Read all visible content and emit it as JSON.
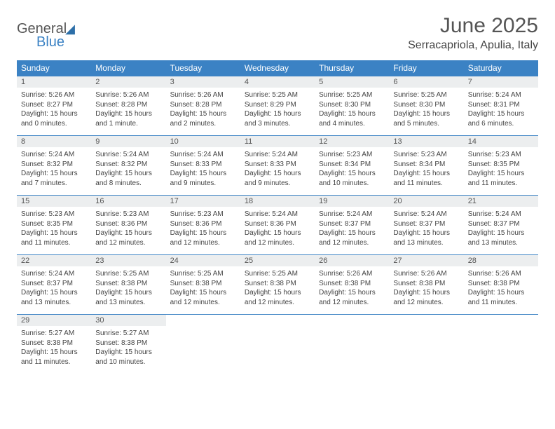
{
  "logo": {
    "general": "General",
    "blue": "Blue"
  },
  "title": "June 2025",
  "location": "Serracapriola, Apulia, Italy",
  "colors": {
    "header_bg": "#3b82c4",
    "header_text": "#ffffff",
    "daynum_bg": "#eceeef",
    "border": "#3b82c4",
    "body_text": "#444444",
    "title_text": "#555555"
  },
  "dayHeaders": [
    "Sunday",
    "Monday",
    "Tuesday",
    "Wednesday",
    "Thursday",
    "Friday",
    "Saturday"
  ],
  "weeks": [
    [
      {
        "n": "1",
        "sr": "5:26 AM",
        "ss": "8:27 PM",
        "dl": "15 hours and 0 minutes."
      },
      {
        "n": "2",
        "sr": "5:26 AM",
        "ss": "8:28 PM",
        "dl": "15 hours and 1 minute."
      },
      {
        "n": "3",
        "sr": "5:26 AM",
        "ss": "8:28 PM",
        "dl": "15 hours and 2 minutes."
      },
      {
        "n": "4",
        "sr": "5:25 AM",
        "ss": "8:29 PM",
        "dl": "15 hours and 3 minutes."
      },
      {
        "n": "5",
        "sr": "5:25 AM",
        "ss": "8:30 PM",
        "dl": "15 hours and 4 minutes."
      },
      {
        "n": "6",
        "sr": "5:25 AM",
        "ss": "8:30 PM",
        "dl": "15 hours and 5 minutes."
      },
      {
        "n": "7",
        "sr": "5:24 AM",
        "ss": "8:31 PM",
        "dl": "15 hours and 6 minutes."
      }
    ],
    [
      {
        "n": "8",
        "sr": "5:24 AM",
        "ss": "8:32 PM",
        "dl": "15 hours and 7 minutes."
      },
      {
        "n": "9",
        "sr": "5:24 AM",
        "ss": "8:32 PM",
        "dl": "15 hours and 8 minutes."
      },
      {
        "n": "10",
        "sr": "5:24 AM",
        "ss": "8:33 PM",
        "dl": "15 hours and 9 minutes."
      },
      {
        "n": "11",
        "sr": "5:24 AM",
        "ss": "8:33 PM",
        "dl": "15 hours and 9 minutes."
      },
      {
        "n": "12",
        "sr": "5:23 AM",
        "ss": "8:34 PM",
        "dl": "15 hours and 10 minutes."
      },
      {
        "n": "13",
        "sr": "5:23 AM",
        "ss": "8:34 PM",
        "dl": "15 hours and 11 minutes."
      },
      {
        "n": "14",
        "sr": "5:23 AM",
        "ss": "8:35 PM",
        "dl": "15 hours and 11 minutes."
      }
    ],
    [
      {
        "n": "15",
        "sr": "5:23 AM",
        "ss": "8:35 PM",
        "dl": "15 hours and 11 minutes."
      },
      {
        "n": "16",
        "sr": "5:23 AM",
        "ss": "8:36 PM",
        "dl": "15 hours and 12 minutes."
      },
      {
        "n": "17",
        "sr": "5:23 AM",
        "ss": "8:36 PM",
        "dl": "15 hours and 12 minutes."
      },
      {
        "n": "18",
        "sr": "5:24 AM",
        "ss": "8:36 PM",
        "dl": "15 hours and 12 minutes."
      },
      {
        "n": "19",
        "sr": "5:24 AM",
        "ss": "8:37 PM",
        "dl": "15 hours and 12 minutes."
      },
      {
        "n": "20",
        "sr": "5:24 AM",
        "ss": "8:37 PM",
        "dl": "15 hours and 13 minutes."
      },
      {
        "n": "21",
        "sr": "5:24 AM",
        "ss": "8:37 PM",
        "dl": "15 hours and 13 minutes."
      }
    ],
    [
      {
        "n": "22",
        "sr": "5:24 AM",
        "ss": "8:37 PM",
        "dl": "15 hours and 13 minutes."
      },
      {
        "n": "23",
        "sr": "5:25 AM",
        "ss": "8:38 PM",
        "dl": "15 hours and 13 minutes."
      },
      {
        "n": "24",
        "sr": "5:25 AM",
        "ss": "8:38 PM",
        "dl": "15 hours and 12 minutes."
      },
      {
        "n": "25",
        "sr": "5:25 AM",
        "ss": "8:38 PM",
        "dl": "15 hours and 12 minutes."
      },
      {
        "n": "26",
        "sr": "5:26 AM",
        "ss": "8:38 PM",
        "dl": "15 hours and 12 minutes."
      },
      {
        "n": "27",
        "sr": "5:26 AM",
        "ss": "8:38 PM",
        "dl": "15 hours and 12 minutes."
      },
      {
        "n": "28",
        "sr": "5:26 AM",
        "ss": "8:38 PM",
        "dl": "15 hours and 11 minutes."
      }
    ],
    [
      {
        "n": "29",
        "sr": "5:27 AM",
        "ss": "8:38 PM",
        "dl": "15 hours and 11 minutes."
      },
      {
        "n": "30",
        "sr": "5:27 AM",
        "ss": "8:38 PM",
        "dl": "15 hours and 10 minutes."
      },
      null,
      null,
      null,
      null,
      null
    ]
  ],
  "labels": {
    "sunrise": "Sunrise: ",
    "sunset": "Sunset: ",
    "daylight": "Daylight: "
  }
}
